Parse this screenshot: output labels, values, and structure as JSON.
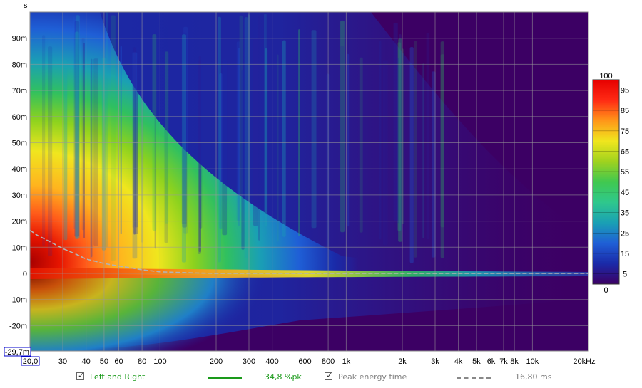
{
  "chart_data": {
    "type": "heatmap",
    "title": "",
    "xlabel": "",
    "ylabel": "s",
    "x_scale": "log",
    "xlim": [
      20,
      20000
    ],
    "ylim": [
      -0.0297,
      0.1
    ],
    "x_ticks": [
      {
        "v": 20,
        "label": "20,0"
      },
      {
        "v": 30,
        "label": "30"
      },
      {
        "v": 40,
        "label": "40"
      },
      {
        "v": 50,
        "label": "50"
      },
      {
        "v": 60,
        "label": "60"
      },
      {
        "v": 80,
        "label": "80"
      },
      {
        "v": 100,
        "label": "100"
      },
      {
        "v": 200,
        "label": "200"
      },
      {
        "v": 300,
        "label": "300"
      },
      {
        "v": 400,
        "label": "400"
      },
      {
        "v": 600,
        "label": "600"
      },
      {
        "v": 800,
        "label": "800"
      },
      {
        "v": 1000,
        "label": "1k"
      },
      {
        "v": 2000,
        "label": "2k"
      },
      {
        "v": 3000,
        "label": "3k"
      },
      {
        "v": 4000,
        "label": "4k"
      },
      {
        "v": 5000,
        "label": "5k"
      },
      {
        "v": 6000,
        "label": "6k"
      },
      {
        "v": 7000,
        "label": "7k"
      },
      {
        "v": 8000,
        "label": "8k"
      },
      {
        "v": 10000,
        "label": "10k"
      },
      {
        "v": 20000,
        "label": "20kHz"
      }
    ],
    "y_ticks": [
      {
        "v": 0.09,
        "label": "90m"
      },
      {
        "v": 0.08,
        "label": "80m"
      },
      {
        "v": 0.07,
        "label": "70m"
      },
      {
        "v": 0.06,
        "label": "60m"
      },
      {
        "v": 0.05,
        "label": "50m"
      },
      {
        "v": 0.04,
        "label": "40m"
      },
      {
        "v": 0.03,
        "label": "30m"
      },
      {
        "v": 0.02,
        "label": "20m"
      },
      {
        "v": 0.01,
        "label": "10m"
      },
      {
        "v": 0,
        "label": "0"
      },
      {
        "v": -0.01,
        "label": "-10m"
      },
      {
        "v": -0.02,
        "label": "-20m"
      }
    ],
    "y_min_label": "-29,7m",
    "grid": true,
    "colorbar": {
      "range": [
        0,
        100
      ],
      "top_label": "100",
      "bottom_label": "0",
      "tick_values": [
        95,
        85,
        75,
        65,
        55,
        45,
        35,
        25,
        15,
        5
      ],
      "colors": [
        "#3c0064",
        "#1a2aa8",
        "#1f5fd6",
        "#1aa0b4",
        "#2fc88c",
        "#40c850",
        "#a0d21e",
        "#f0e61e",
        "#ff9619",
        "#ff2a14",
        "#e60000"
      ]
    },
    "peak_energy_time": {
      "name": "Peak energy time",
      "freq": [
        20,
        22,
        25,
        30,
        35,
        40,
        50,
        60,
        70,
        80,
        100,
        150,
        200,
        400,
        1000,
        20000
      ],
      "time": [
        0.0165,
        0.0145,
        0.0125,
        0.0095,
        0.0075,
        0.0055,
        0.0038,
        0.0028,
        0.0021,
        0.0014,
        0.0006,
        0.0002,
        0.0,
        0.0,
        0.0,
        0.0
      ]
    }
  },
  "legend": {
    "items": [
      {
        "label": "Left and Right",
        "checked": true,
        "color": "#1a9a1a",
        "value": "34,8 %pk"
      },
      {
        "label": "Peak energy time",
        "checked": true,
        "color": "#888888",
        "value": "16,80 ms"
      }
    ],
    "checkmark": "✓"
  }
}
